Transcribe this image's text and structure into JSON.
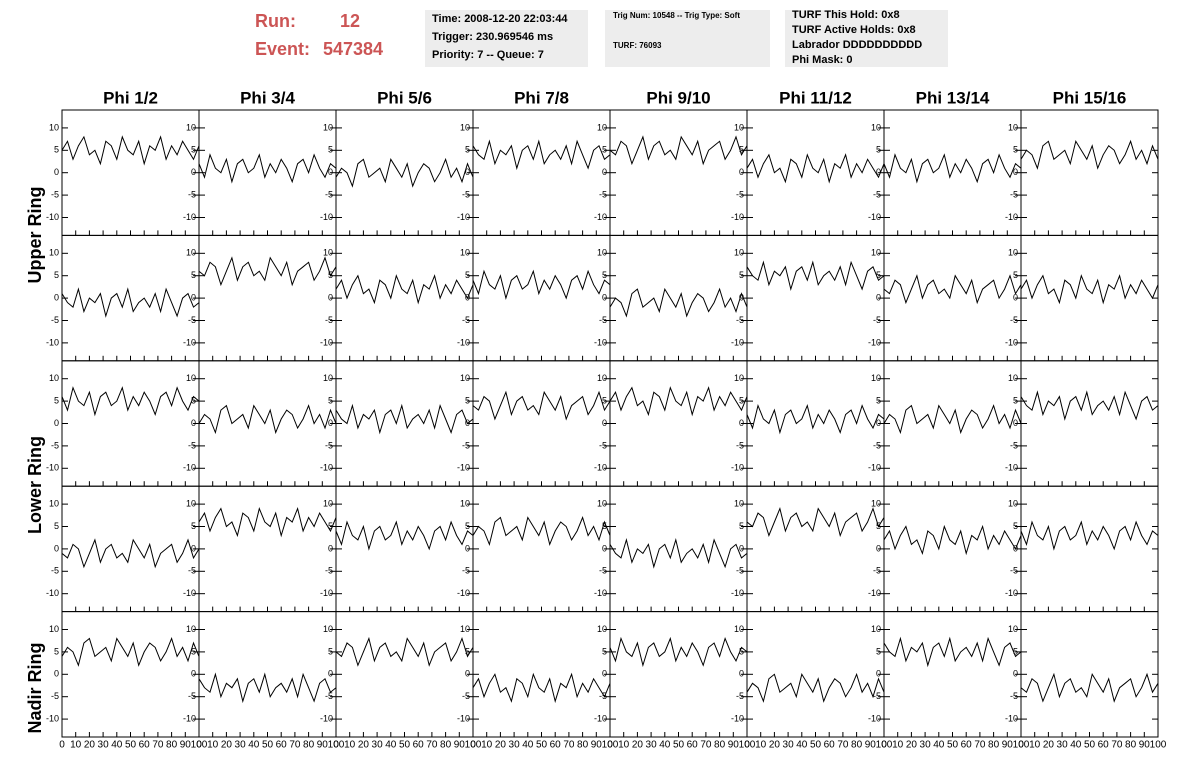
{
  "header": {
    "run_label": "Run:",
    "run": "12",
    "event_label": "Event:",
    "event": "547384"
  },
  "info": [
    [
      "Time: 2008-12-20 22:03:44",
      "Trigger: 230.969546 ms",
      "Priority: 7 -- Queue: 7"
    ],
    [
      "Trig Num: 10548 -- Trig Type: Soft",
      "TURF: 76093"
    ],
    [
      "TURF This Hold: 0x8",
      "TURF Active Holds: 0x8",
      "Labrador DDDDDDDDDD",
      "Phi Mask: 0"
    ]
  ],
  "chart_data": {
    "type": "line",
    "columns": [
      "Phi 1/2",
      "Phi 3/4",
      "Phi 5/6",
      "Phi 7/8",
      "Phi 9/10",
      "Phi 11/12",
      "Phi 13/14",
      "Phi 15/16"
    ],
    "rows": [
      "Upper Ring",
      "Lower Ring",
      "Nadir Ring"
    ],
    "xlim": [
      0,
      100
    ],
    "xticks": [
      0,
      10,
      20,
      30,
      40,
      50,
      60,
      70,
      80,
      90,
      100
    ],
    "ylim": [
      -14,
      14
    ],
    "yticks": [
      -10,
      -5,
      0,
      5,
      10
    ],
    "color": "#000000",
    "x": [
      0,
      4,
      8,
      12,
      16,
      20,
      24,
      28,
      32,
      36,
      40,
      44,
      48,
      52,
      56,
      60,
      64,
      68,
      72,
      76,
      80,
      84,
      88,
      92,
      96,
      100
    ],
    "panels": [
      [
        5,
        7,
        3,
        6,
        8,
        4,
        5,
        2,
        7,
        6,
        3,
        8,
        5,
        4,
        7,
        2,
        6,
        5,
        8,
        3,
        6,
        4,
        7,
        5,
        3,
        6
      ],
      [
        2,
        -1,
        4,
        1,
        0,
        3,
        -2,
        2,
        3,
        0,
        1,
        4,
        -1,
        2,
        0,
        3,
        1,
        -2,
        2,
        3,
        0,
        4,
        1,
        -1,
        2,
        1
      ],
      [
        -1,
        1,
        0,
        -3,
        2,
        3,
        -1,
        0,
        1,
        -2,
        3,
        1,
        -1,
        2,
        -3,
        0,
        2,
        1,
        -2,
        0,
        3,
        -1,
        1,
        -2,
        2,
        -1
      ],
      [
        6,
        4,
        3,
        7,
        2,
        5,
        4,
        6,
        1,
        5,
        6,
        3,
        7,
        2,
        4,
        5,
        3,
        6,
        2,
        7,
        4,
        1,
        5,
        6,
        3,
        4
      ],
      [
        5,
        4,
        7,
        6,
        2,
        5,
        8,
        3,
        6,
        7,
        4,
        5,
        3,
        8,
        6,
        4,
        7,
        2,
        5,
        6,
        7,
        3,
        5,
        8,
        4,
        6
      ],
      [
        1,
        3,
        -1,
        2,
        4,
        0,
        1,
        -2,
        3,
        2,
        -1,
        4,
        1,
        0,
        3,
        -2,
        2,
        1,
        4,
        -1,
        2,
        0,
        3,
        1,
        -1,
        2
      ],
      [
        2,
        -1,
        4,
        1,
        0,
        3,
        -2,
        2,
        3,
        0,
        1,
        4,
        -1,
        2,
        0,
        3,
        1,
        -2,
        2,
        3,
        0,
        4,
        1,
        -1,
        2,
        1
      ],
      [
        3,
        5,
        4,
        1,
        6,
        7,
        3,
        4,
        5,
        2,
        7,
        5,
        3,
        6,
        1,
        4,
        6,
        5,
        2,
        4,
        7,
        3,
        5,
        2,
        6,
        3
      ],
      [
        1,
        -1,
        -2,
        2,
        -3,
        0,
        -1,
        1,
        -4,
        0,
        1,
        -2,
        2,
        -3,
        -1,
        0,
        -2,
        1,
        -3,
        2,
        -1,
        -4,
        0,
        1,
        -2,
        -1
      ],
      [
        6,
        5,
        8,
        7,
        3,
        6,
        9,
        4,
        7,
        8,
        5,
        6,
        4,
        9,
        7,
        5,
        8,
        3,
        6,
        7,
        8,
        4,
        6,
        9,
        5,
        7
      ],
      [
        2,
        4,
        0,
        3,
        5,
        1,
        2,
        -1,
        4,
        3,
        0,
        5,
        2,
        1,
        4,
        -1,
        3,
        2,
        5,
        0,
        3,
        1,
        4,
        2,
        0,
        3
      ],
      [
        4,
        1,
        6,
        3,
        2,
        5,
        0,
        4,
        5,
        2,
        3,
        6,
        1,
        4,
        2,
        5,
        3,
        0,
        4,
        5,
        2,
        6,
        3,
        1,
        4,
        3
      ],
      [
        -2,
        0,
        -1,
        -4,
        1,
        2,
        -2,
        -1,
        0,
        -3,
        2,
        0,
        -2,
        1,
        -4,
        -1,
        1,
        0,
        -3,
        -1,
        2,
        -2,
        0,
        -3,
        1,
        -2
      ],
      [
        7,
        5,
        4,
        8,
        3,
        6,
        5,
        7,
        2,
        6,
        7,
        4,
        8,
        3,
        5,
        6,
        4,
        7,
        3,
        8,
        5,
        2,
        6,
        7,
        4,
        5
      ],
      [
        2,
        1,
        4,
        3,
        -1,
        2,
        5,
        0,
        3,
        4,
        1,
        2,
        0,
        5,
        3,
        1,
        4,
        -1,
        2,
        3,
        4,
        0,
        2,
        5,
        1,
        3
      ],
      [
        2,
        4,
        0,
        3,
        5,
        1,
        2,
        -1,
        4,
        3,
        0,
        5,
        2,
        1,
        4,
        -1,
        3,
        2,
        5,
        0,
        3,
        1,
        4,
        2,
        0,
        3
      ],
      [
        6,
        3,
        8,
        5,
        4,
        7,
        2,
        6,
        7,
        4,
        5,
        8,
        3,
        6,
        4,
        7,
        5,
        2,
        6,
        7,
        4,
        8,
        5,
        3,
        6,
        5
      ],
      [
        0,
        2,
        1,
        -2,
        3,
        4,
        0,
        1,
        2,
        -1,
        4,
        2,
        0,
        3,
        -2,
        1,
        3,
        2,
        -1,
        1,
        4,
        0,
        2,
        -1,
        3,
        0
      ],
      [
        3,
        1,
        0,
        4,
        -1,
        2,
        1,
        3,
        -2,
        2,
        3,
        0,
        4,
        -1,
        1,
        2,
        0,
        3,
        -1,
        4,
        1,
        -2,
        2,
        3,
        0,
        1
      ],
      [
        4,
        3,
        6,
        5,
        1,
        4,
        7,
        2,
        5,
        6,
        3,
        4,
        2,
        7,
        5,
        3,
        6,
        1,
        4,
        5,
        6,
        2,
        4,
        7,
        3,
        5
      ],
      [
        5,
        7,
        3,
        6,
        8,
        4,
        5,
        2,
        7,
        6,
        3,
        8,
        5,
        4,
        7,
        2,
        6,
        5,
        8,
        3,
        6,
        4,
        7,
        5,
        3,
        6
      ],
      [
        2,
        -1,
        4,
        1,
        0,
        3,
        -2,
        2,
        3,
        0,
        1,
        4,
        -1,
        2,
        0,
        3,
        1,
        -2,
        2,
        3,
        0,
        4,
        1,
        -1,
        2,
        1
      ],
      [
        0,
        2,
        1,
        -2,
        3,
        4,
        0,
        1,
        2,
        -1,
        4,
        2,
        0,
        3,
        -2,
        1,
        3,
        2,
        -1,
        1,
        4,
        0,
        2,
        -1,
        3,
        0
      ],
      [
        6,
        4,
        3,
        7,
        2,
        5,
        4,
        6,
        1,
        5,
        6,
        3,
        7,
        2,
        4,
        5,
        3,
        6,
        2,
        7,
        4,
        1,
        5,
        6,
        3,
        4
      ],
      [
        -1,
        -2,
        1,
        0,
        -4,
        -1,
        2,
        -3,
        0,
        1,
        -2,
        -1,
        -3,
        2,
        0,
        -2,
        1,
        -4,
        -1,
        0,
        1,
        -3,
        -1,
        2,
        -2,
        0
      ],
      [
        6,
        8,
        4,
        7,
        9,
        5,
        6,
        3,
        8,
        7,
        4,
        9,
        6,
        5,
        8,
        3,
        7,
        6,
        9,
        4,
        7,
        5,
        8,
        6,
        4,
        7
      ],
      [
        4,
        1,
        6,
        3,
        2,
        5,
        0,
        4,
        5,
        2,
        3,
        6,
        1,
        4,
        2,
        5,
        3,
        0,
        4,
        5,
        2,
        6,
        3,
        1,
        4,
        3
      ],
      [
        3,
        5,
        4,
        1,
        6,
        7,
        3,
        4,
        5,
        2,
        7,
        5,
        3,
        6,
        1,
        4,
        6,
        5,
        2,
        4,
        7,
        3,
        5,
        2,
        6,
        3
      ],
      [
        1,
        -1,
        -2,
        2,
        -3,
        0,
        -1,
        1,
        -4,
        0,
        1,
        -2,
        2,
        -3,
        -1,
        0,
        -2,
        1,
        -3,
        2,
        -1,
        -4,
        0,
        1,
        -2,
        -1
      ],
      [
        6,
        5,
        8,
        7,
        3,
        6,
        9,
        4,
        7,
        8,
        5,
        6,
        4,
        9,
        7,
        5,
        8,
        3,
        6,
        7,
        8,
        4,
        6,
        9,
        5,
        7
      ],
      [
        2,
        4,
        0,
        3,
        5,
        1,
        2,
        -1,
        4,
        3,
        0,
        5,
        2,
        1,
        4,
        -1,
        3,
        2,
        5,
        0,
        3,
        1,
        4,
        2,
        0,
        3
      ],
      [
        4,
        1,
        6,
        3,
        2,
        5,
        0,
        4,
        5,
        2,
        3,
        6,
        1,
        4,
        2,
        5,
        3,
        0,
        4,
        5,
        2,
        6,
        3,
        1,
        4,
        3
      ],
      [
        4,
        6,
        5,
        2,
        7,
        8,
        4,
        5,
        6,
        3,
        8,
        6,
        4,
        7,
        2,
        5,
        7,
        6,
        3,
        5,
        8,
        4,
        6,
        3,
        7,
        4
      ],
      [
        -1,
        -3,
        -4,
        0,
        -5,
        -2,
        -3,
        -1,
        -6,
        -2,
        -1,
        -4,
        0,
        -5,
        -3,
        -2,
        -4,
        -1,
        -5,
        0,
        -3,
        -6,
        -2,
        -1,
        -4,
        -3
      ],
      [
        5,
        4,
        7,
        6,
        2,
        5,
        8,
        3,
        6,
        7,
        4,
        5,
        3,
        8,
        6,
        4,
        7,
        2,
        5,
        6,
        7,
        3,
        5,
        8,
        4,
        6
      ],
      [
        -3,
        -1,
        -5,
        -2,
        0,
        -4,
        -3,
        -6,
        -1,
        -2,
        -5,
        0,
        -3,
        -4,
        -1,
        -6,
        -2,
        -3,
        0,
        -5,
        -2,
        -4,
        -1,
        -3,
        -5,
        -2
      ],
      [
        6,
        3,
        8,
        5,
        4,
        7,
        2,
        6,
        7,
        4,
        5,
        8,
        3,
        6,
        4,
        7,
        5,
        2,
        6,
        7,
        4,
        8,
        5,
        3,
        6,
        5
      ],
      [
        -4,
        -2,
        -3,
        -6,
        -1,
        0,
        -4,
        -3,
        -2,
        -5,
        0,
        -2,
        -4,
        -1,
        -6,
        -3,
        -1,
        -2,
        -5,
        -3,
        0,
        -4,
        -2,
        -5,
        -1,
        -4
      ],
      [
        7,
        5,
        4,
        8,
        3,
        6,
        5,
        7,
        2,
        6,
        7,
        4,
        8,
        3,
        5,
        6,
        4,
        7,
        3,
        8,
        5,
        2,
        6,
        7,
        4,
        5
      ],
      [
        -3,
        -4,
        -1,
        -2,
        -6,
        -3,
        0,
        -5,
        -2,
        -1,
        -4,
        -3,
        -5,
        0,
        -2,
        -4,
        -1,
        -6,
        -3,
        -2,
        -1,
        -5,
        -3,
        0,
        -4,
        -2
      ]
    ]
  }
}
